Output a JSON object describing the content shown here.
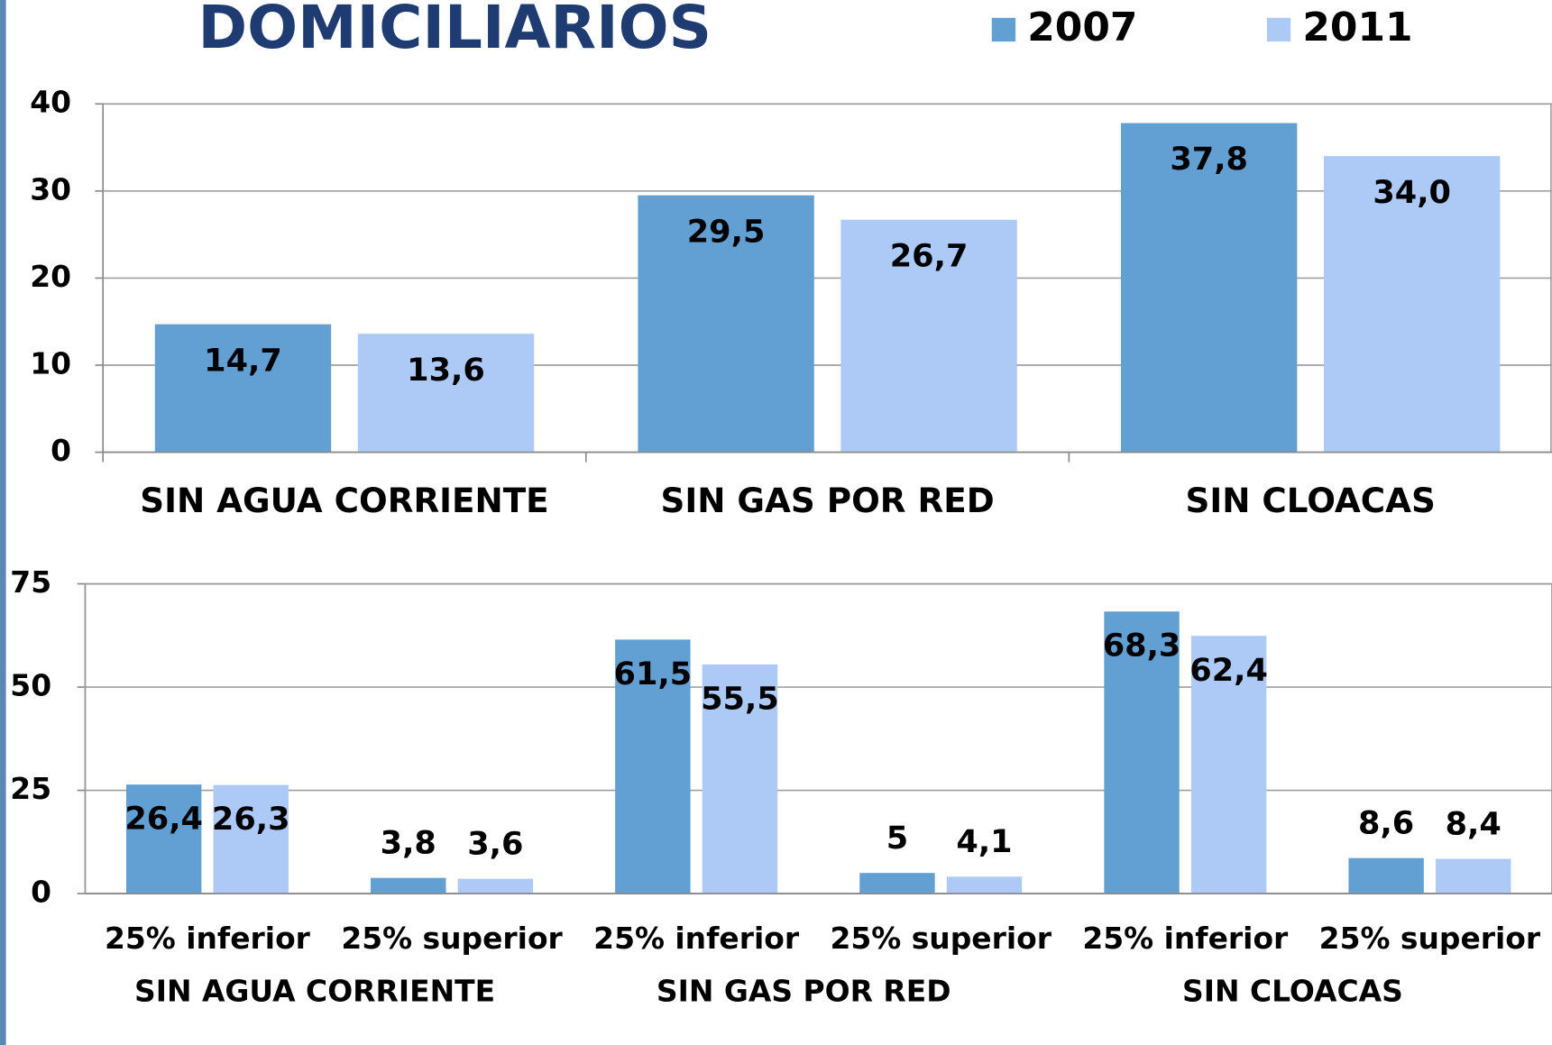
{
  "chart_data": [
    {
      "type": "bar",
      "title": "DOMICILIARIOS",
      "categories": [
        "SIN AGUA CORRIENTE",
        "SIN GAS POR RED",
        "SIN CLOACAS"
      ],
      "series": [
        {
          "name": "2007",
          "color": "#629fd2",
          "values": [
            14.7,
            29.5,
            37.8
          ],
          "value_labels": [
            "14,7",
            "29,5",
            "37,8"
          ]
        },
        {
          "name": "2011",
          "color": "#adcaf6",
          "values": [
            13.6,
            26.7,
            34.0
          ],
          "value_labels": [
            "13,6",
            "26,7",
            "34,0"
          ]
        }
      ],
      "ylim": [
        0,
        40
      ],
      "yticks": [
        0,
        10,
        20,
        30,
        40
      ],
      "grid": true,
      "legend": "top-right"
    },
    {
      "type": "bar",
      "categories": [
        "25% inferior",
        "25% superior",
        "25% inferior",
        "25% superior",
        "25% inferior",
        "25% superior"
      ],
      "groups": [
        "SIN AGUA CORRIENTE",
        "SIN GAS POR RED",
        "SIN CLOACAS"
      ],
      "series": [
        {
          "color": "#629fd2",
          "values": [
            26.4,
            3.8,
            61.5,
            5,
            68.3,
            8.6
          ],
          "value_labels": [
            "26,4",
            "3,8",
            "61,5",
            "5",
            "68,3",
            "8,6"
          ]
        },
        {
          "color": "#adcaf6",
          "values": [
            26.3,
            3.6,
            55.5,
            4.1,
            62.4,
            8.4
          ],
          "value_labels": [
            "26,3",
            "3,6",
            "55,5",
            "4,1",
            "62,4",
            "8,4"
          ]
        }
      ],
      "ylim": [
        0,
        75
      ],
      "yticks": [
        0,
        25,
        50,
        75
      ],
      "grid": true
    }
  ]
}
